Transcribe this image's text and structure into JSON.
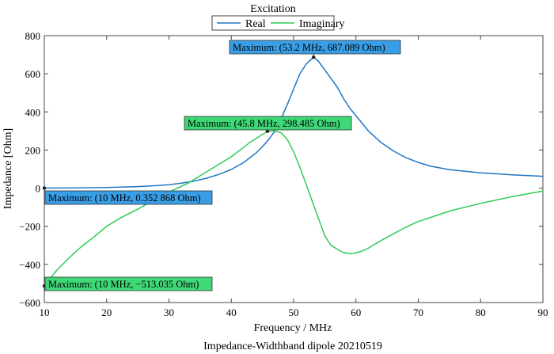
{
  "chart_data": {
    "type": "line",
    "legend_title": "Excitation",
    "title": "Impedance-Widthband dipole 20210519",
    "xlabel": "Frequency / MHz",
    "ylabel": "Impedance [Ohm]",
    "xlim": [
      10,
      90
    ],
    "ylim": [
      -600,
      800
    ],
    "xticks": [
      10,
      20,
      30,
      40,
      50,
      60,
      70,
      80,
      90
    ],
    "yticks": [
      -600,
      -400,
      -200,
      0,
      200,
      400,
      600,
      800
    ],
    "ytick_labels": [
      "−600",
      "−400",
      "−200",
      "0",
      "200",
      "400",
      "600",
      "800"
    ],
    "grid": false,
    "legend_position": "top-center",
    "series": [
      {
        "name": "Real",
        "color": "#1f77c4",
        "x": [
          10,
          15,
          20,
          25,
          28,
          30,
          32,
          34,
          36,
          38,
          40,
          42,
          44,
          45,
          46,
          47,
          48,
          49,
          50,
          51,
          52,
          53.2,
          54,
          55,
          56,
          57,
          58,
          59,
          60,
          62,
          64,
          66,
          68,
          70,
          72,
          75,
          80,
          85,
          90
        ],
        "values": [
          0.35,
          1,
          3,
          8,
          13,
          18,
          26,
          37,
          52,
          72,
          98,
          135,
          185,
          218,
          255,
          300,
          365,
          440,
          520,
          600,
          650,
          687,
          665,
          620,
          575,
          530,
          470,
          420,
          380,
          300,
          240,
          195,
          160,
          135,
          115,
          97,
          80,
          70,
          62
        ]
      },
      {
        "name": "Imaginary",
        "color": "#2ecc58",
        "x": [
          10,
          12,
          14,
          16,
          18,
          20,
          22,
          25,
          28,
          30,
          33,
          36,
          40,
          43,
          45.8,
          47,
          48,
          49,
          50,
          51,
          52,
          53,
          54,
          55,
          56,
          57,
          58,
          59,
          60,
          61,
          62,
          64,
          66,
          68,
          70,
          75,
          80,
          85,
          90
        ],
        "values": [
          -513,
          -430,
          -365,
          -305,
          -255,
          -200,
          -160,
          -110,
          -55,
          -20,
          25,
          85,
          165,
          240,
          298,
          300,
          290,
          255,
          190,
          110,
          20,
          -70,
          -160,
          -250,
          -300,
          -320,
          -338,
          -344,
          -340,
          -330,
          -315,
          -275,
          -240,
          -205,
          -175,
          -120,
          -80,
          -45,
          -15
        ]
      }
    ],
    "annotations": [
      {
        "text": "Maximum: (53.2 MHz, 687.089 Ohm)",
        "x": 53.2,
        "y": 687.089,
        "series": "Real"
      },
      {
        "text": "Maximum: (45.8 MHz, 298.485 Ohm)",
        "x": 45.8,
        "y": 298.485,
        "series": "Imaginary"
      },
      {
        "text": "Maximum: (10 MHz, 0.352 868 Ohm)",
        "x": 10,
        "y": 0.352868,
        "series": "Real"
      },
      {
        "text": "Maximum: (10 MHz, −513.035 Ohm)",
        "x": 10,
        "y": -513.035,
        "series": "Imaginary"
      }
    ]
  }
}
